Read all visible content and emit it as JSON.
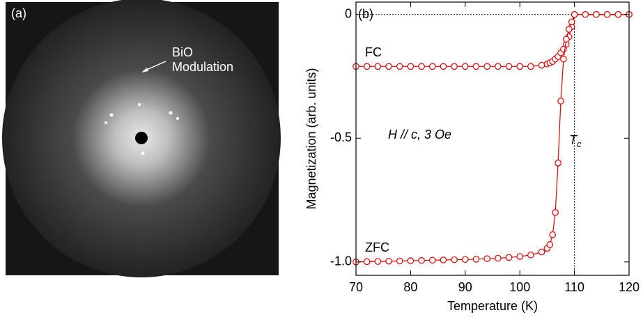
{
  "image_panel": {
    "label": "(a)",
    "annotation": [
      "BiO",
      "Modulation"
    ]
  },
  "chart_data": {
    "type": "line",
    "panel_label": "(b)",
    "x_label": "Temperature (K)",
    "y_label": "Magnetization (arb. units)",
    "xlim": [
      70,
      120
    ],
    "ylim": [
      -1.054,
      0.05
    ],
    "xticks": [
      70,
      80,
      90,
      100,
      110,
      120
    ],
    "yticks": [
      0,
      -0.5,
      {
        "value": -1,
        "label": "-1.0"
      }
    ],
    "x": [
      70,
      72,
      74,
      76,
      78,
      80,
      82,
      84,
      86,
      88,
      90,
      92,
      94,
      96,
      98,
      100,
      102,
      104,
      105,
      105.5,
      106,
      106.5,
      107,
      107.5,
      108,
      108.5,
      109,
      109.5,
      110,
      112,
      114,
      116,
      118,
      120
    ],
    "series": [
      {
        "name": "FC",
        "color": "#e00000",
        "values": [
          -0.21,
          -0.21,
          -0.21,
          -0.21,
          -0.21,
          -0.21,
          -0.21,
          -0.21,
          -0.21,
          -0.21,
          -0.21,
          -0.21,
          -0.21,
          -0.21,
          -0.21,
          -0.21,
          -0.21,
          -0.205,
          -0.2,
          -0.195,
          -0.19,
          -0.18,
          -0.17,
          -0.155,
          -0.14,
          -0.12,
          -0.09,
          -0.05,
          0,
          0,
          0,
          0,
          0,
          0
        ]
      },
      {
        "name": "ZFC",
        "color": "#e00000",
        "values": [
          -1.0,
          -0.999,
          -0.998,
          -0.997,
          -0.996,
          -0.995,
          -0.994,
          -0.993,
          -0.992,
          -0.991,
          -0.99,
          -0.989,
          -0.987,
          -0.985,
          -0.982,
          -0.978,
          -0.972,
          -0.96,
          -0.945,
          -0.93,
          -0.89,
          -0.8,
          -0.6,
          -0.35,
          -0.18,
          -0.1,
          -0.06,
          -0.03,
          0,
          0,
          0,
          0,
          0,
          0
        ]
      }
    ],
    "reference_lines": {
      "y": 0,
      "x": 110
    },
    "annotations": [
      {
        "text": "H // c, 3 Oe"
      },
      {
        "text": "T",
        "sub": "c"
      }
    ]
  }
}
